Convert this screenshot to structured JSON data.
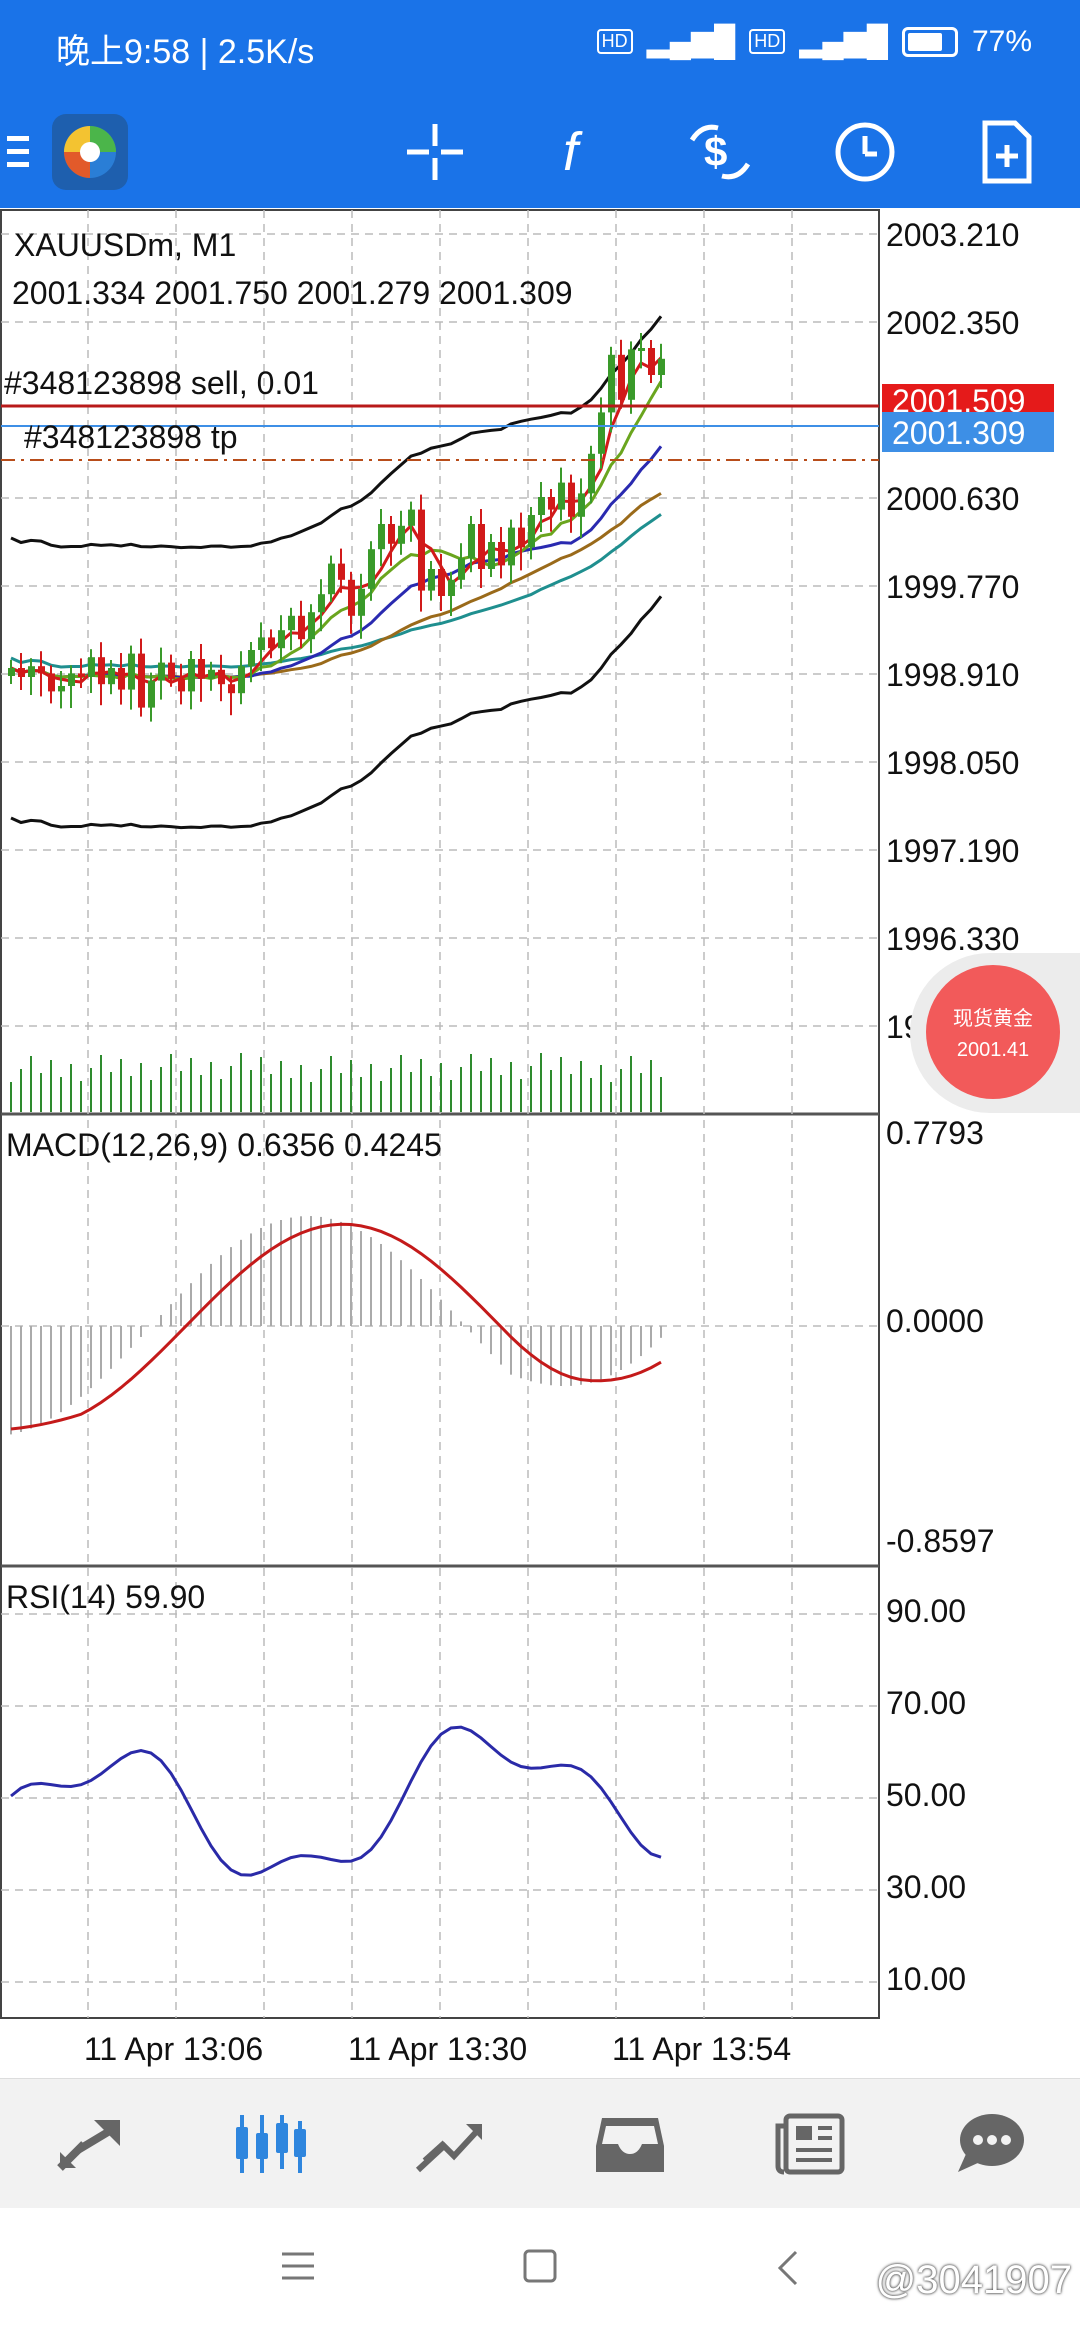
{
  "status_bar": {
    "time_text": "晚上9:58 | 2.5K/s",
    "battery": "77%",
    "net_1": "HD",
    "net_2": "HD"
  },
  "app_bar": {
    "icons": [
      "menu-icon",
      "app-logo-icon",
      "crosshair-icon",
      "function-icon",
      "trade-icon",
      "history-icon",
      "new-order-icon"
    ]
  },
  "chart": {
    "symbol_label": "XAUUSDm, M1",
    "ohlc": "2001.334 2001.750 2001.279 2001.309",
    "order_line": "#348123898 sell, 0.01",
    "tp_line": "#348123898 tp",
    "sell_price_tag": "2001.509",
    "bid_price_tag": "2001.309",
    "price_ticks": [
      "2003.210",
      "2002.350",
      "2000.630",
      "1999.770",
      "1998.910",
      "1998.050",
      "1997.190",
      "1996.330",
      "1995.470"
    ],
    "macd_label": "MACD(12,26,9) 0.6356 0.4245",
    "macd_ticks": [
      "0.7793",
      "0.0000",
      "-0.8597"
    ],
    "rsi_label": "RSI(14) 59.90",
    "rsi_ticks": [
      "90.00",
      "70.00",
      "50.00",
      "30.00",
      "10.00"
    ],
    "time_ticks": [
      "11 Apr 13:06",
      "11 Apr 13:30",
      "11 Apr 13:54"
    ]
  },
  "float_widget": {
    "title": "现货黄金",
    "price": "2001.41"
  },
  "bottom_nav": {
    "items": [
      "quotes-icon",
      "chart-icon",
      "trade-icon",
      "history-icon",
      "news-icon",
      "messages-icon"
    ]
  },
  "watermark": "@3041907",
  "colors": {
    "brand_blue": "#1a73e8",
    "bull": "#3a9a2a",
    "bear": "#d11a1a",
    "sell_tag": "#e51a1a",
    "bid_tag": "#3d8fe6"
  }
}
